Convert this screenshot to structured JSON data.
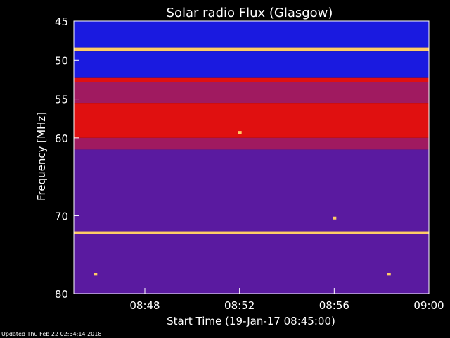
{
  "chart_data": {
    "type": "heatmap",
    "title": "Solar radio Flux (Glasgow)",
    "xlabel": "Start Time (19-Jan-17 08:45:00)",
    "ylabel": "Frequency [MHz]",
    "x_unit": "minutes after 08:45",
    "xlim": [
      0,
      15
    ],
    "x_ticks": [
      {
        "value": 3,
        "label": "08:48"
      },
      {
        "value": 7,
        "label": "08:52"
      },
      {
        "value": 11,
        "label": "08:56"
      },
      {
        "value": 15,
        "label": "09:00"
      }
    ],
    "ylim": [
      45,
      80
    ],
    "y_direction": "down",
    "y_ticks": [
      45,
      50,
      55,
      60,
      70,
      80
    ],
    "colors": {
      "background": "#000000",
      "low": "#1a1ae0",
      "mid": "#5a1aa0",
      "high": "#e01010",
      "peak": "#ffcc66"
    },
    "frequency_bands": [
      {
        "f0": 45.0,
        "f1": 48.4,
        "level": "low"
      },
      {
        "f0": 48.4,
        "f1": 48.9,
        "level": "peak"
      },
      {
        "f0": 48.9,
        "f1": 52.3,
        "level": "low"
      },
      {
        "f0": 52.3,
        "f1": 52.8,
        "level": "high"
      },
      {
        "f0": 52.8,
        "f1": 55.5,
        "level": "mid-high"
      },
      {
        "f0": 55.5,
        "f1": 60.0,
        "level": "high"
      },
      {
        "f0": 60.0,
        "f1": 61.5,
        "level": "mid-high"
      },
      {
        "f0": 61.5,
        "f1": 72.0,
        "level": "mid"
      },
      {
        "f0": 72.0,
        "f1": 72.4,
        "level": "peak"
      },
      {
        "f0": 72.4,
        "f1": 80.0,
        "level": "mid"
      }
    ],
    "bright_spots": [
      {
        "t": 7.0,
        "f": 59.3
      },
      {
        "t": 11.0,
        "f": 70.3
      },
      {
        "t": 13.3,
        "f": 77.5
      },
      {
        "t": 0.9,
        "f": 77.5
      }
    ]
  },
  "footer": {
    "updated": "Updated Thu Feb 22 02:34:14 2018"
  }
}
